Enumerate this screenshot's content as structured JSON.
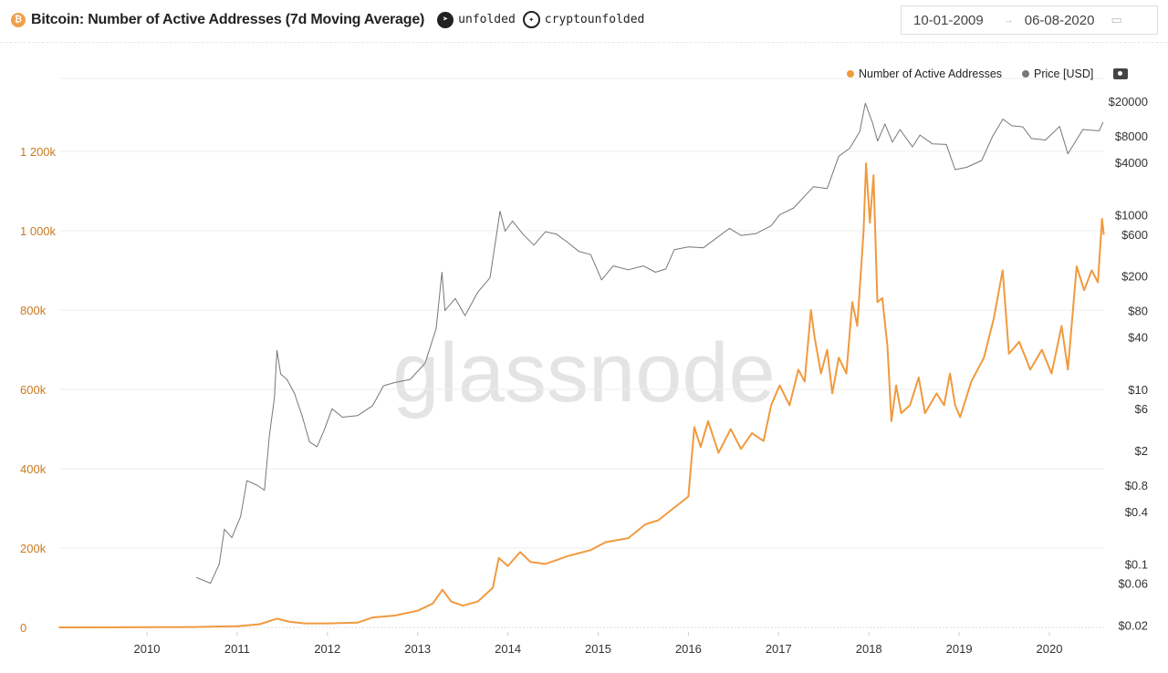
{
  "header": {
    "title": "Bitcoin: Number of Active Addresses (7d Moving Average)",
    "telegram_handle": "unfolded",
    "twitter_handle": "cryptounfolded",
    "date_from": "10-01-2009",
    "date_to": "06-08-2020",
    "date_separator": "→"
  },
  "watermark": "glassnode",
  "colors": {
    "addresses": "#f09a3e",
    "price": "#777777",
    "left_axis_text": "#c97a1e",
    "grid": "#eeeeee"
  },
  "chart_data": {
    "type": "line",
    "legend_position": "top-right",
    "grid": true,
    "x_ticks": [
      "2010",
      "2011",
      "2012",
      "2013",
      "2014",
      "2015",
      "2016",
      "2017",
      "2018",
      "2019",
      "2020"
    ],
    "y_left": {
      "scale": "linear",
      "range": [
        0,
        1200000
      ],
      "ticks": [
        {
          "value": 0,
          "label": "0"
        },
        {
          "value": 200000,
          "label": "200k"
        },
        {
          "value": 400000,
          "label": "400k"
        },
        {
          "value": 600000,
          "label": "600k"
        },
        {
          "value": 800000,
          "label": "800k"
        },
        {
          "value": 1000000,
          "label": "1 000k"
        },
        {
          "value": 1200000,
          "label": "1 200k"
        }
      ]
    },
    "y_right": {
      "scale": "log",
      "ticks": [
        {
          "value": 20000,
          "label": "$20000"
        },
        {
          "value": 8000,
          "label": "$8000"
        },
        {
          "value": 4000,
          "label": "$4000"
        },
        {
          "value": 1000,
          "label": "$1000"
        },
        {
          "value": 600,
          "label": "$600"
        },
        {
          "value": 200,
          "label": "$200"
        },
        {
          "value": 80,
          "label": "$80"
        },
        {
          "value": 40,
          "label": "$40"
        },
        {
          "value": 10,
          "label": "$10"
        },
        {
          "value": 6,
          "label": "$6"
        },
        {
          "value": 2,
          "label": "$2"
        },
        {
          "value": 0.8,
          "label": "$0.8"
        },
        {
          "value": 0.4,
          "label": "$0.4"
        },
        {
          "value": 0.1,
          "label": "$0.1"
        },
        {
          "value": 0.06,
          "label": "$0.06"
        },
        {
          "value": 0.02,
          "label": "$0.02"
        }
      ]
    },
    "series": [
      {
        "name": "Number of Active Addresses",
        "axis": "left",
        "points": [
          [
            "2009-01-10",
            0
          ],
          [
            "2010-01-01",
            500
          ],
          [
            "2010-07-01",
            1000
          ],
          [
            "2011-01-01",
            3000
          ],
          [
            "2011-04-01",
            8000
          ],
          [
            "2011-06-10",
            22000
          ],
          [
            "2011-08-01",
            14000
          ],
          [
            "2011-10-01",
            10000
          ],
          [
            "2012-01-01",
            10000
          ],
          [
            "2012-05-01",
            12000
          ],
          [
            "2012-07-01",
            25000
          ],
          [
            "2012-10-01",
            30000
          ],
          [
            "2013-01-01",
            42000
          ],
          [
            "2013-03-01",
            60000
          ],
          [
            "2013-04-10",
            95000
          ],
          [
            "2013-05-15",
            65000
          ],
          [
            "2013-07-01",
            55000
          ],
          [
            "2013-09-01",
            65000
          ],
          [
            "2013-11-01",
            100000
          ],
          [
            "2013-11-25",
            175000
          ],
          [
            "2014-01-01",
            155000
          ],
          [
            "2014-02-20",
            190000
          ],
          [
            "2014-04-01",
            165000
          ],
          [
            "2014-06-01",
            160000
          ],
          [
            "2014-09-01",
            180000
          ],
          [
            "2014-12-01",
            195000
          ],
          [
            "2015-02-01",
            215000
          ],
          [
            "2015-05-01",
            225000
          ],
          [
            "2015-07-10",
            260000
          ],
          [
            "2015-09-01",
            270000
          ],
          [
            "2015-11-01",
            300000
          ],
          [
            "2016-01-01",
            330000
          ],
          [
            "2016-01-25",
            505000
          ],
          [
            "2016-02-20",
            455000
          ],
          [
            "2016-03-20",
            520000
          ],
          [
            "2016-05-01",
            440000
          ],
          [
            "2016-06-20",
            500000
          ],
          [
            "2016-08-01",
            450000
          ],
          [
            "2016-09-15",
            490000
          ],
          [
            "2016-11-01",
            470000
          ],
          [
            "2016-12-01",
            560000
          ],
          [
            "2017-01-05",
            610000
          ],
          [
            "2017-02-15",
            560000
          ],
          [
            "2017-03-20",
            650000
          ],
          [
            "2017-04-15",
            620000
          ],
          [
            "2017-05-10",
            800000
          ],
          [
            "2017-05-25",
            730000
          ],
          [
            "2017-06-20",
            640000
          ],
          [
            "2017-07-15",
            700000
          ],
          [
            "2017-08-05",
            590000
          ],
          [
            "2017-09-01",
            680000
          ],
          [
            "2017-10-01",
            640000
          ],
          [
            "2017-10-25",
            820000
          ],
          [
            "2017-11-15",
            760000
          ],
          [
            "2017-12-10",
            1000000
          ],
          [
            "2017-12-20",
            1170000
          ],
          [
            "2018-01-05",
            1020000
          ],
          [
            "2018-01-20",
            1140000
          ],
          [
            "2018-02-05",
            820000
          ],
          [
            "2018-02-25",
            830000
          ],
          [
            "2018-03-15",
            710000
          ],
          [
            "2018-04-01",
            520000
          ],
          [
            "2018-04-20",
            610000
          ],
          [
            "2018-05-10",
            540000
          ],
          [
            "2018-06-15",
            560000
          ],
          [
            "2018-07-20",
            630000
          ],
          [
            "2018-08-15",
            540000
          ],
          [
            "2018-10-01",
            590000
          ],
          [
            "2018-11-01",
            560000
          ],
          [
            "2018-11-25",
            640000
          ],
          [
            "2018-12-15",
            560000
          ],
          [
            "2019-01-05",
            530000
          ],
          [
            "2019-02-20",
            620000
          ],
          [
            "2019-04-10",
            680000
          ],
          [
            "2019-05-20",
            780000
          ],
          [
            "2019-06-25",
            900000
          ],
          [
            "2019-07-20",
            690000
          ],
          [
            "2019-09-01",
            720000
          ],
          [
            "2019-10-15",
            650000
          ],
          [
            "2019-12-01",
            700000
          ],
          [
            "2020-01-10",
            640000
          ],
          [
            "2020-02-20",
            760000
          ],
          [
            "2020-03-15",
            650000
          ],
          [
            "2020-04-20",
            910000
          ],
          [
            "2020-05-20",
            850000
          ],
          [
            "2020-06-20",
            900000
          ],
          [
            "2020-07-15",
            870000
          ],
          [
            "2020-08-01",
            1030000
          ],
          [
            "2020-08-08",
            990000
          ]
        ]
      },
      {
        "name": "Price [USD]",
        "axis": "right",
        "points": [
          [
            "2010-07-18",
            0.07
          ],
          [
            "2010-09-15",
            0.06
          ],
          [
            "2010-10-20",
            0.1
          ],
          [
            "2010-11-10",
            0.25
          ],
          [
            "2010-12-10",
            0.2
          ],
          [
            "2011-01-15",
            0.35
          ],
          [
            "2011-02-10",
            0.9
          ],
          [
            "2011-03-20",
            0.8
          ],
          [
            "2011-04-20",
            0.7
          ],
          [
            "2011-05-10",
            3
          ],
          [
            "2011-05-30",
            8
          ],
          [
            "2011-06-10",
            28
          ],
          [
            "2011-06-25",
            15
          ],
          [
            "2011-07-20",
            13
          ],
          [
            "2011-08-20",
            9
          ],
          [
            "2011-09-20",
            5
          ],
          [
            "2011-10-20",
            2.5
          ],
          [
            "2011-11-20",
            2.2
          ],
          [
            "2011-12-20",
            3.5
          ],
          [
            "2012-01-20",
            6
          ],
          [
            "2012-03-01",
            4.8
          ],
          [
            "2012-05-01",
            5
          ],
          [
            "2012-07-01",
            6.5
          ],
          [
            "2012-08-15",
            11
          ],
          [
            "2012-10-01",
            12
          ],
          [
            "2012-12-01",
            13
          ],
          [
            "2013-02-01",
            20
          ],
          [
            "2013-03-15",
            50
          ],
          [
            "2013-04-08",
            220
          ],
          [
            "2013-04-20",
            80
          ],
          [
            "2013-06-01",
            110
          ],
          [
            "2013-07-10",
            70
          ],
          [
            "2013-09-01",
            130
          ],
          [
            "2013-10-20",
            190
          ],
          [
            "2013-11-30",
            1100
          ],
          [
            "2013-12-20",
            650
          ],
          [
            "2014-01-20",
            850
          ],
          [
            "2014-03-01",
            600
          ],
          [
            "2014-04-15",
            450
          ],
          [
            "2014-06-01",
            640
          ],
          [
            "2014-07-15",
            600
          ],
          [
            "2014-09-01",
            480
          ],
          [
            "2014-10-15",
            380
          ],
          [
            "2014-12-01",
            350
          ],
          [
            "2015-01-15",
            180
          ],
          [
            "2015-03-01",
            260
          ],
          [
            "2015-05-01",
            235
          ],
          [
            "2015-07-01",
            260
          ],
          [
            "2015-08-20",
            220
          ],
          [
            "2015-10-01",
            240
          ],
          [
            "2015-11-05",
            400
          ],
          [
            "2016-01-01",
            430
          ],
          [
            "2016-03-01",
            420
          ],
          [
            "2016-06-15",
            700
          ],
          [
            "2016-08-01",
            580
          ],
          [
            "2016-10-01",
            610
          ],
          [
            "2016-12-01",
            750
          ],
          [
            "2017-01-05",
            1000
          ],
          [
            "2017-03-01",
            1200
          ],
          [
            "2017-05-20",
            2100
          ],
          [
            "2017-07-15",
            2000
          ],
          [
            "2017-09-01",
            4700
          ],
          [
            "2017-10-15",
            5800
          ],
          [
            "2017-11-25",
            9000
          ],
          [
            "2017-12-17",
            19000
          ],
          [
            "2018-01-15",
            11500
          ],
          [
            "2018-02-06",
            7000
          ],
          [
            "2018-03-05",
            11000
          ],
          [
            "2018-04-05",
            6800
          ],
          [
            "2018-05-05",
            9500
          ],
          [
            "2018-06-25",
            6000
          ],
          [
            "2018-07-25",
            8200
          ],
          [
            "2018-09-15",
            6500
          ],
          [
            "2018-11-10",
            6400
          ],
          [
            "2018-12-15",
            3300
          ],
          [
            "2019-02-01",
            3500
          ],
          [
            "2019-04-01",
            4200
          ],
          [
            "2019-05-15",
            8000
          ],
          [
            "2019-06-26",
            12500
          ],
          [
            "2019-08-01",
            10500
          ],
          [
            "2019-09-15",
            10200
          ],
          [
            "2019-10-20",
            7500
          ],
          [
            "2019-12-15",
            7200
          ],
          [
            "2020-02-12",
            10300
          ],
          [
            "2020-03-15",
            5000
          ],
          [
            "2020-04-15",
            6900
          ],
          [
            "2020-05-15",
            9500
          ],
          [
            "2020-06-20",
            9300
          ],
          [
            "2020-07-20",
            9200
          ],
          [
            "2020-08-05",
            11500
          ]
        ]
      }
    ]
  }
}
